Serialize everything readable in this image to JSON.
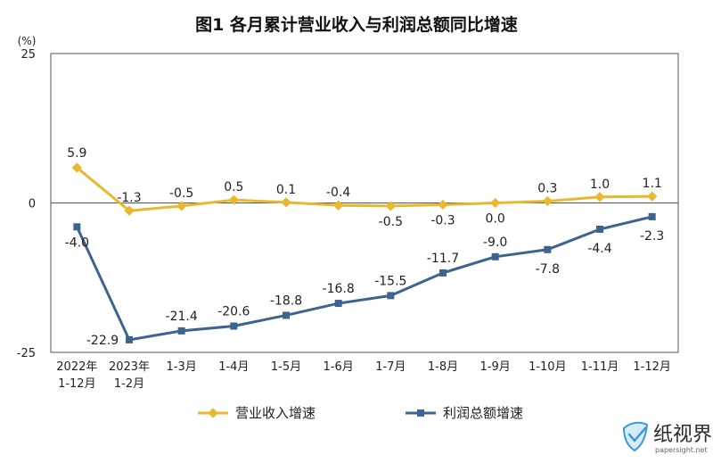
{
  "chart_data": {
    "type": "line",
    "title": "图1  各月累计营业收入与利润总额同比增速",
    "unit": "(%)",
    "ylim": [
      -25,
      25
    ],
    "yticks": [
      "25",
      "0",
      "-25"
    ],
    "categories": [
      [
        "2022年",
        "1-12月"
      ],
      [
        "2023年",
        "1-2月"
      ],
      [
        "1-3月"
      ],
      [
        "1-4月"
      ],
      [
        "1-5月"
      ],
      [
        "1-6月"
      ],
      [
        "1-7月"
      ],
      [
        "1-8月"
      ],
      [
        "1-9月"
      ],
      [
        "1-10月"
      ],
      [
        "1-11月"
      ],
      [
        "1-12月"
      ]
    ],
    "series": [
      {
        "name": "营业收入增速",
        "color": "#e8b92e",
        "marker": "diamond",
        "values": [
          5.9,
          -1.3,
          -0.5,
          0.5,
          0.1,
          -0.4,
          -0.5,
          -0.3,
          0.0,
          0.3,
          1.0,
          1.1
        ],
        "labels": [
          "5.9",
          "-1.3",
          "-0.5",
          "0.5",
          "0.1",
          "-0.4",
          "-0.5",
          "-0.3",
          "0.0",
          "0.3",
          "1.0",
          "1.1"
        ]
      },
      {
        "name": "利润总额增速",
        "color": "#3d6390",
        "marker": "square",
        "values": [
          -4.0,
          -22.9,
          -21.4,
          -20.6,
          -18.8,
          -16.8,
          -15.5,
          -11.7,
          -9.0,
          -7.8,
          -4.4,
          -2.3
        ],
        "labels": [
          "-4.0",
          "-22.9",
          "-21.4",
          "-20.6",
          "-18.8",
          "-16.8",
          "-15.5",
          "-11.7",
          "-9.0",
          "-7.8",
          "-4.4",
          "-2.3"
        ]
      }
    ],
    "grid": false,
    "legend_position": "bottom"
  },
  "watermark": {
    "text": "纸视界",
    "subtext": "papersight.net",
    "icon": "check-shield-logo-icon"
  }
}
